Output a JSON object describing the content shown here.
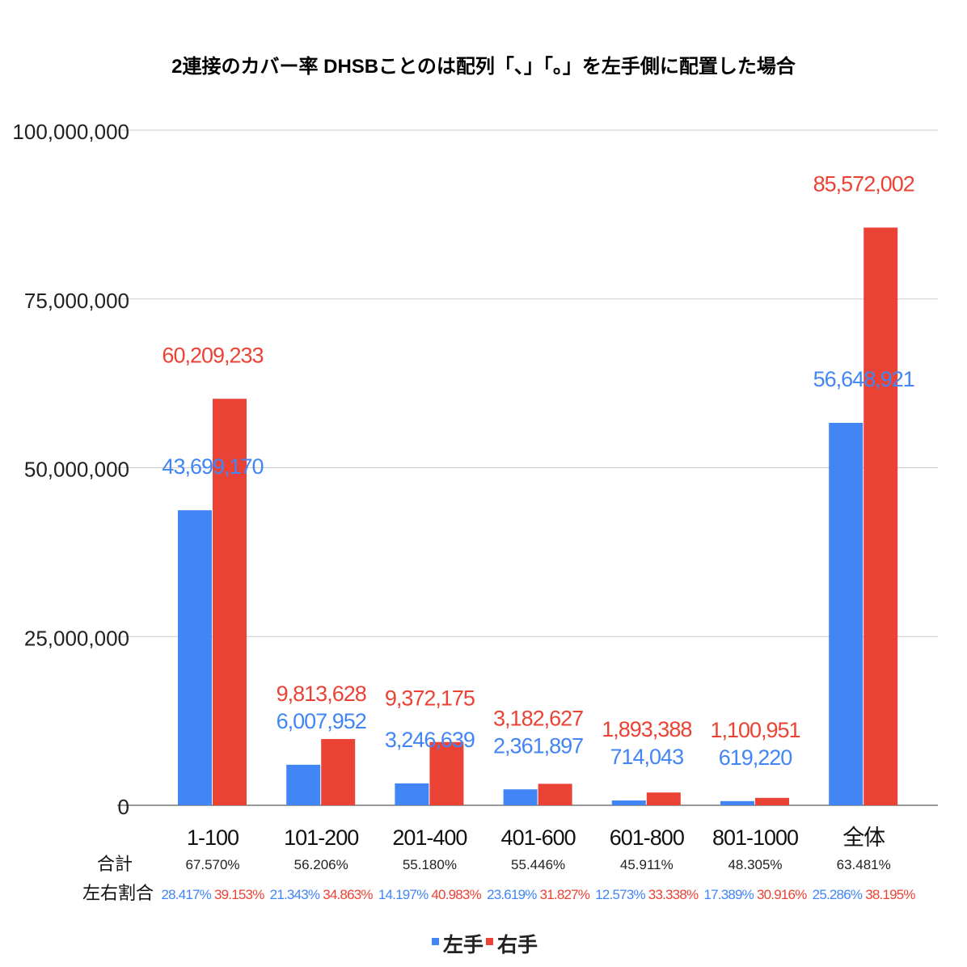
{
  "chart_data": {
    "type": "bar",
    "title": "2連接のカバー率 DHSBことのは配列「、」「。」を左手側に配置した場合",
    "xlabel": "",
    "ylabel": "",
    "ylim": [
      0,
      100000000
    ],
    "yticks": [
      0,
      25000000,
      50000000,
      75000000,
      100000000
    ],
    "ytick_labels": [
      "0",
      "25,000,000",
      "50,000,000",
      "75,000,000",
      "100,000,000"
    ],
    "grid": true,
    "legend_position": "bottom",
    "categories": [
      "1-100",
      "101-200",
      "201-400",
      "401-600",
      "601-800",
      "801-1000",
      "全体"
    ],
    "series": [
      {
        "name": "左手",
        "color": "#4285f4",
        "values": [
          43699170,
          6007952,
          3246639,
          2361897,
          714043,
          619220,
          56648921
        ],
        "labels": [
          "43,699,170",
          "6,007,952",
          "3,246,639",
          "2,361,897",
          "714,043",
          "619,220",
          "56,648,921"
        ]
      },
      {
        "name": "右手",
        "color": "#ea4335",
        "values": [
          60209233,
          9813628,
          9372175,
          3182627,
          1893388,
          1100951,
          85572002
        ],
        "labels": [
          "60,209,233",
          "9,813,628",
          "9,372,175",
          "3,182,627",
          "1,893,388",
          "1,100,951",
          "85,572,002"
        ]
      }
    ],
    "table": {
      "total_label": "合計",
      "ratio_label": "左右割合",
      "totals": [
        "67.570%",
        "56.206%",
        "55.180%",
        "55.446%",
        "45.911%",
        "48.305%",
        "63.481%"
      ],
      "left_ratios": [
        "28.417%",
        "21.343%",
        "14.197%",
        "23.619%",
        "12.573%",
        "17.389%",
        "25.286%"
      ],
      "right_ratios": [
        "39.153%",
        "34.863%",
        "40.983%",
        "31.827%",
        "33.338%",
        "30.916%",
        "38.195%"
      ]
    }
  }
}
